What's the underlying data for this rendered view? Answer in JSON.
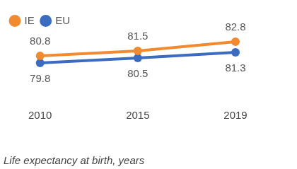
{
  "chart_data": {
    "type": "line",
    "title": "Life expectancy at birth, years",
    "categories": [
      "2010",
      "2015",
      "2019"
    ],
    "series": [
      {
        "name": "IE",
        "color": "#f28a30",
        "values": [
          80.8,
          81.5,
          82.8
        ],
        "marker": "circle"
      },
      {
        "name": "EU",
        "color": "#3b6cc0",
        "values": [
          79.8,
          80.5,
          81.3
        ],
        "marker": "circle"
      }
    ],
    "ylim": [
      78,
      84
    ],
    "grid": false,
    "legend": "top-left",
    "data_labels": true,
    "tick_labels": "x"
  }
}
